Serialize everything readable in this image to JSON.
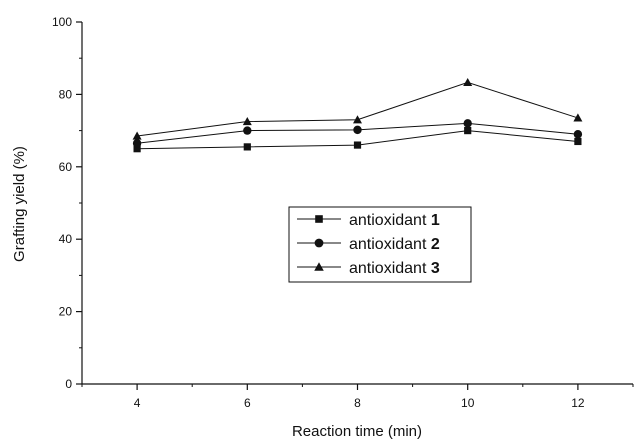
{
  "chart_data": {
    "type": "line",
    "title": "",
    "xlabel": "Reaction time (min)",
    "ylabel": "Grafting yield (%)",
    "x": [
      4,
      6,
      8,
      10,
      12
    ],
    "xlim": [
      3,
      13
    ],
    "ylim": [
      0,
      100
    ],
    "xticks": [
      "4",
      "6",
      "8",
      "10",
      "12"
    ],
    "yticks": [
      "0",
      "20",
      "40",
      "60",
      "80",
      "100"
    ],
    "grid": false,
    "legend_position": "center",
    "series": [
      {
        "name": "antioxidant",
        "number": "1",
        "marker": "square",
        "values": [
          65,
          65.5,
          66,
          70,
          67
        ]
      },
      {
        "name": "antioxidant",
        "number": "2",
        "marker": "circle",
        "values": [
          66.5,
          70,
          70.2,
          72,
          69
        ]
      },
      {
        "name": "antioxidant",
        "number": "3",
        "marker": "triangle",
        "values": [
          68.5,
          72.5,
          73,
          83.3,
          73.5
        ]
      }
    ],
    "color": "#111111"
  }
}
